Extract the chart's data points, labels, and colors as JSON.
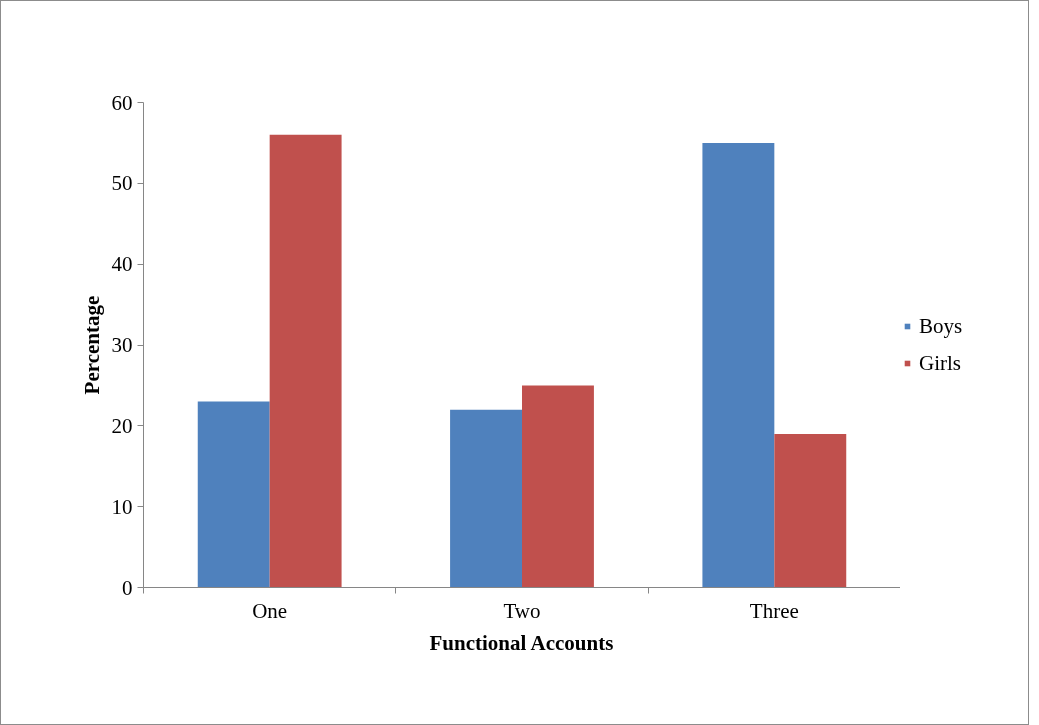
{
  "chart_data": {
    "type": "bar",
    "xlabel": "Functional Accounts",
    "ylabel": "Percentage",
    "categories": [
      "One",
      "Two",
      "Three"
    ],
    "series": [
      {
        "name": "Boys",
        "color": "#4f81bd",
        "values": [
          23,
          22,
          55
        ]
      },
      {
        "name": "Girls",
        "color": "#c0504d",
        "values": [
          56,
          25,
          19
        ]
      }
    ],
    "ylim": [
      0,
      60
    ],
    "yticks": [
      0,
      10,
      20,
      30,
      40,
      50,
      60
    ],
    "grid": false,
    "legend": "right"
  }
}
